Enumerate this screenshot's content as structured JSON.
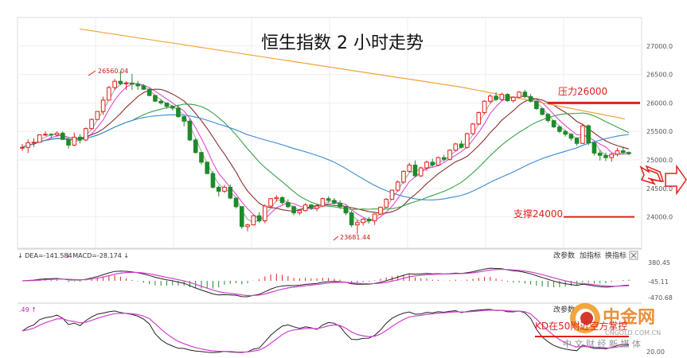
{
  "chart_data": {
    "type": "candlestick",
    "title": "恒生指数 2 小时走势",
    "y_ticks": [
      "27000.0",
      "26500.0",
      "26000.0",
      "25500.0",
      "25000.0",
      "24500.0",
      "24000.0"
    ],
    "ylim": [
      23450,
      27500
    ],
    "annotations": {
      "high": "26560.04",
      "low": "23681.44",
      "resistance": {
        "label": "压力26000",
        "value": 26000
      },
      "support": {
        "label": "支撑24000",
        "value": 24000
      }
    },
    "candles": [
      [
        25220,
        25280,
        25160,
        25220
      ],
      [
        25220,
        25360,
        25120,
        25300
      ],
      [
        25300,
        25380,
        25230,
        25310
      ],
      [
        25310,
        25450,
        25300,
        25440
      ],
      [
        25440,
        25500,
        25420,
        25450
      ],
      [
        25450,
        25470,
        25380,
        25440
      ],
      [
        25440,
        25500,
        25410,
        25470
      ],
      [
        25470,
        25500,
        25350,
        25360
      ],
      [
        25360,
        25400,
        25200,
        25260
      ],
      [
        25260,
        25480,
        25240,
        25400
      ],
      [
        25400,
        25450,
        25290,
        25350
      ],
      [
        25350,
        25570,
        25330,
        25550
      ],
      [
        25550,
        25730,
        25530,
        25710
      ],
      [
        25710,
        25860,
        25700,
        25850
      ],
      [
        25850,
        26110,
        25790,
        26050
      ],
      [
        26050,
        26300,
        26050,
        26270
      ],
      [
        26270,
        26420,
        26230,
        26380
      ],
      [
        26380,
        26560,
        26310,
        26340
      ],
      [
        26340,
        26380,
        26230,
        26350
      ],
      [
        26350,
        26510,
        26230,
        26330
      ],
      [
        26330,
        26390,
        26230,
        26300
      ],
      [
        26300,
        26330,
        26230,
        26240
      ],
      [
        26240,
        26260,
        26120,
        26130
      ],
      [
        26130,
        26150,
        26020,
        26030
      ],
      [
        26030,
        26070,
        25970,
        26000
      ],
      [
        26000,
        26000,
        25900,
        25940
      ],
      [
        25940,
        25960,
        25870,
        25910
      ],
      [
        25910,
        25970,
        25740,
        25760
      ],
      [
        25760,
        25770,
        25590,
        25680
      ],
      [
        25680,
        25720,
        25330,
        25350
      ],
      [
        25350,
        25380,
        25110,
        25130
      ],
      [
        25130,
        25140,
        24920,
        24960
      ],
      [
        24960,
        24970,
        24750,
        24760
      ],
      [
        24760,
        24800,
        24500,
        24520
      ],
      [
        24520,
        24550,
        24360,
        24450
      ],
      [
        24450,
        24560,
        24420,
        24520
      ],
      [
        24520,
        24570,
        24310,
        24330
      ],
      [
        24330,
        24350,
        24150,
        24180
      ],
      [
        24180,
        24190,
        23790,
        23830
      ],
      [
        23830,
        23880,
        23750,
        23860
      ],
      [
        23860,
        24030,
        23850,
        24020
      ],
      [
        24020,
        24080,
        23900,
        23930
      ],
      [
        23930,
        24220,
        23890,
        24190
      ],
      [
        24190,
        24330,
        24170,
        24320
      ],
      [
        24320,
        24380,
        24270,
        24340
      ],
      [
        24340,
        24360,
        24220,
        24250
      ],
      [
        24250,
        24310,
        24150,
        24180
      ],
      [
        24180,
        24200,
        24030,
        24070
      ],
      [
        24070,
        24140,
        24030,
        24110
      ],
      [
        24110,
        24240,
        24090,
        24210
      ],
      [
        24210,
        24220,
        24120,
        24150
      ],
      [
        24150,
        24230,
        24100,
        24190
      ],
      [
        24190,
        24340,
        24170,
        24320
      ],
      [
        24320,
        24360,
        24250,
        24290
      ],
      [
        24290,
        24330,
        24220,
        24240
      ],
      [
        24240,
        24290,
        24140,
        24180
      ],
      [
        24180,
        24200,
        24030,
        24070
      ],
      [
        24070,
        24110,
        23820,
        23860
      ],
      [
        23860,
        23950,
        23700,
        23900
      ],
      [
        23900,
        23980,
        23850,
        23960
      ],
      [
        23960,
        24000,
        23880,
        23930
      ],
      [
        23930,
        24060,
        23860,
        24050
      ],
      [
        24050,
        24180,
        24030,
        24170
      ],
      [
        24170,
        24330,
        24160,
        24310
      ],
      [
        24310,
        24480,
        24300,
        24470
      ],
      [
        24470,
        24640,
        24440,
        24610
      ],
      [
        24610,
        24820,
        24580,
        24800
      ],
      [
        24800,
        24950,
        24780,
        24910
      ],
      [
        24910,
        24990,
        24700,
        24720
      ],
      [
        24720,
        24880,
        24700,
        24860
      ],
      [
        24860,
        24990,
        24810,
        24960
      ],
      [
        24960,
        25020,
        24880,
        24910
      ],
      [
        24910,
        25060,
        24890,
        25040
      ],
      [
        25040,
        25090,
        24980,
        25010
      ],
      [
        25010,
        25190,
        24990,
        25170
      ],
      [
        25170,
        25300,
        25150,
        25280
      ],
      [
        25280,
        25340,
        25200,
        25220
      ],
      [
        25220,
        25480,
        25200,
        25460
      ],
      [
        25460,
        25650,
        25440,
        25630
      ],
      [
        25630,
        25850,
        25610,
        25830
      ],
      [
        25830,
        26050,
        25800,
        26030
      ],
      [
        26030,
        26150,
        25990,
        26120
      ],
      [
        26120,
        26190,
        26030,
        26060
      ],
      [
        26060,
        26180,
        26040,
        26150
      ],
      [
        26150,
        26170,
        26020,
        26040
      ],
      [
        26040,
        26120,
        26010,
        26100
      ],
      [
        26100,
        26210,
        26080,
        26190
      ],
      [
        26190,
        26230,
        26080,
        26110
      ],
      [
        26110,
        26160,
        26010,
        26030
      ],
      [
        26030,
        26050,
        25880,
        25900
      ],
      [
        25900,
        25920,
        25780,
        25800
      ],
      [
        25800,
        25820,
        25660,
        25690
      ],
      [
        25690,
        25700,
        25560,
        25580
      ],
      [
        25580,
        25610,
        25470,
        25500
      ],
      [
        25500,
        25530,
        25410,
        25450
      ],
      [
        25450,
        25470,
        25340,
        25380
      ],
      [
        25380,
        25400,
        25250,
        25290
      ],
      [
        25290,
        25640,
        25280,
        25600
      ],
      [
        25600,
        25620,
        25260,
        25300
      ],
      [
        25300,
        25320,
        25080,
        25120
      ],
      [
        25120,
        25180,
        24990,
        25080
      ],
      [
        25080,
        25130,
        24980,
        25040
      ],
      [
        25040,
        25120,
        24970,
        25100
      ],
      [
        25100,
        25210,
        25060,
        25160
      ],
      [
        25160,
        25240,
        25100,
        25130
      ],
      [
        25130,
        25150,
        25080,
        25110
      ]
    ],
    "indicators": [
      {
        "label": "DEA=-141.584"
      },
      {
        "label": "MACD=-28.174"
      }
    ],
    "macd_ticks": [
      "380.45",
      "-45.11",
      "-470.68"
    ],
    "kd_prefix": ".49",
    "kd_note": "KD在50附近空方掌控",
    "kd_tick": "20.00"
  },
  "panels": {
    "macd_buttons": [
      "改参数",
      "加指标",
      "换指标"
    ],
    "close_icon": "close-icon",
    "kd_buttons": [
      "改参数"
    ]
  },
  "watermark": {
    "name": "中金网",
    "domain": "CNGOLD.COM.CN",
    "slogan": "中 文 财 经 新 媒 体"
  },
  "colors": {
    "up": "#e0201a",
    "down": "#1f8a2a",
    "accent": "#e0201a",
    "ma_orange": "#f2a33a",
    "ma_blue": "#3a8ad6",
    "ma_green": "#3aa04a",
    "ma_brown": "#8a2f2f",
    "ma_magenta": "#e04ad6",
    "ma_gray": "#a8a8a8"
  }
}
